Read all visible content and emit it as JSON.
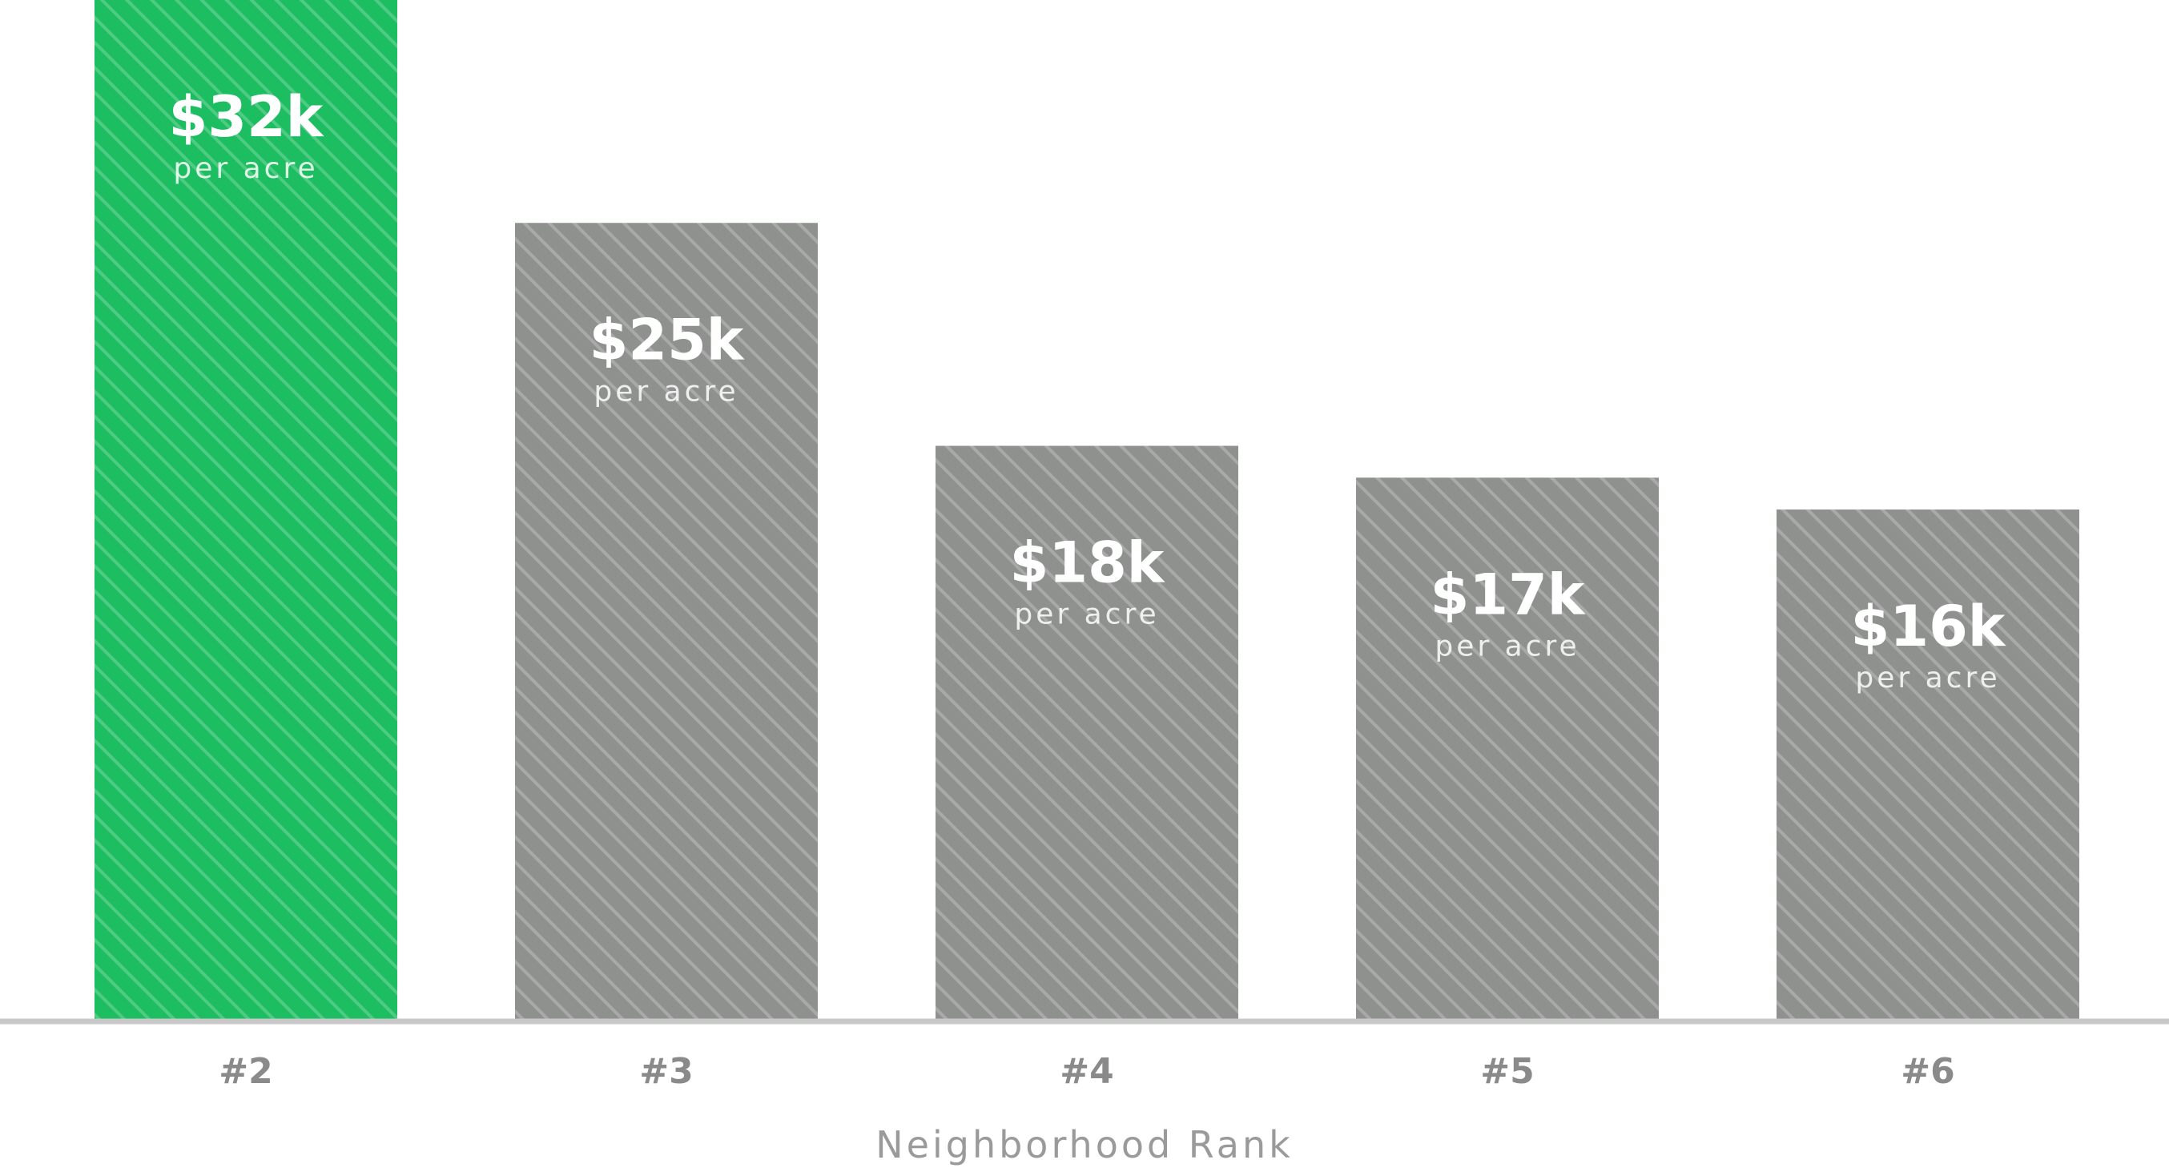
{
  "chart_data": {
    "type": "bar",
    "title": "",
    "xlabel": "Neighborhood Rank",
    "ylabel": "",
    "categories": [
      "#2",
      "#3",
      "#4",
      "#5",
      "#6"
    ],
    "values": [
      32,
      25,
      18,
      17,
      16
    ],
    "value_labels": [
      "$32k",
      "$25k",
      "$18k",
      "$17k",
      "$16k"
    ],
    "unit_label": "per acre",
    "ylim": [
      0,
      32
    ],
    "grid": false,
    "legend": "none",
    "highlight_index": 0,
    "colors": {
      "highlight": "#1dbd62",
      "default": "#8f918f",
      "axis": "#c8c8c8",
      "stripe": "#ffffff"
    }
  }
}
